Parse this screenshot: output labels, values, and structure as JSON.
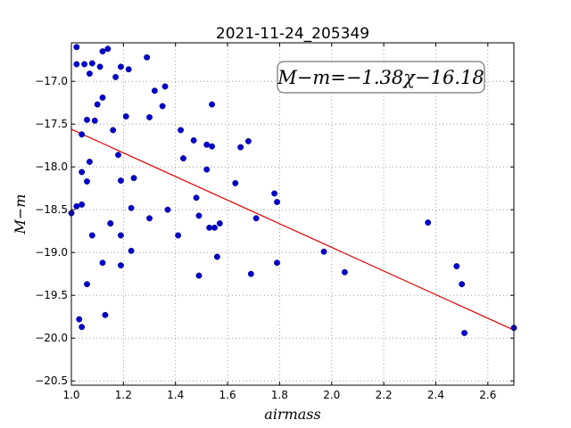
{
  "chart_data": {
    "type": "scatter",
    "title": "2021-11-24_205349",
    "xlabel": "airmass",
    "ylabel": "M−m",
    "xlim": [
      1.0,
      2.7
    ],
    "ylim": [
      -20.55,
      -16.55
    ],
    "xticks": [
      1.0,
      1.2,
      1.4,
      1.6,
      1.8,
      2.0,
      2.2,
      2.4,
      2.6
    ],
    "xtick_labels": [
      "1.0",
      "1.2",
      "1.4",
      "1.6",
      "1.8",
      "2.0",
      "2.2",
      "2.4",
      "2.6"
    ],
    "yticks": [
      -17.0,
      -17.5,
      -18.0,
      -18.5,
      -19.0,
      -19.5,
      -20.0,
      -20.5
    ],
    "ytick_labels": [
      "−17.0",
      "−17.5",
      "−18.0",
      "−18.5",
      "−19.0",
      "−19.5",
      "−20.0",
      "−20.5"
    ],
    "grid": true,
    "annotation": "M−m=−1.38χ−16.18",
    "fit": {
      "slope": -1.38,
      "intercept": -16.18,
      "color": "#e00000"
    },
    "marker_color": "#0000cc",
    "points": [
      [
        1.0,
        -18.54
      ],
      [
        1.02,
        -16.6
      ],
      [
        1.02,
        -16.8
      ],
      [
        1.02,
        -18.46
      ],
      [
        1.03,
        -19.78
      ],
      [
        1.04,
        -19.87
      ],
      [
        1.04,
        -18.44
      ],
      [
        1.04,
        -18.06
      ],
      [
        1.04,
        -17.62
      ],
      [
        1.05,
        -16.8
      ],
      [
        1.06,
        -17.45
      ],
      [
        1.06,
        -18.17
      ],
      [
        1.06,
        -19.37
      ],
      [
        1.07,
        -16.91
      ],
      [
        1.07,
        -17.94
      ],
      [
        1.08,
        -16.79
      ],
      [
        1.08,
        -18.8
      ],
      [
        1.09,
        -17.46
      ],
      [
        1.1,
        -17.27
      ],
      [
        1.11,
        -16.83
      ],
      [
        1.12,
        -17.19
      ],
      [
        1.12,
        -16.65
      ],
      [
        1.12,
        -19.12
      ],
      [
        1.13,
        -19.73
      ],
      [
        1.14,
        -16.62
      ],
      [
        1.15,
        -18.66
      ],
      [
        1.15,
        -18.66
      ],
      [
        1.16,
        -17.57
      ],
      [
        1.17,
        -16.95
      ],
      [
        1.18,
        -17.86
      ],
      [
        1.19,
        -18.16
      ],
      [
        1.19,
        -16.83
      ],
      [
        1.19,
        -18.8
      ],
      [
        1.19,
        -19.15
      ],
      [
        1.21,
        -17.41
      ],
      [
        1.22,
        -16.86
      ],
      [
        1.23,
        -18.48
      ],
      [
        1.23,
        -18.98
      ],
      [
        1.24,
        -18.13
      ],
      [
        1.29,
        -16.72
      ],
      [
        1.3,
        -18.6
      ],
      [
        1.3,
        -17.42
      ],
      [
        1.32,
        -17.11
      ],
      [
        1.35,
        -17.29
      ],
      [
        1.36,
        -17.06
      ],
      [
        1.37,
        -18.5
      ],
      [
        1.41,
        -18.8
      ],
      [
        1.42,
        -17.57
      ],
      [
        1.43,
        -17.9
      ],
      [
        1.47,
        -17.69
      ],
      [
        1.48,
        -18.36
      ],
      [
        1.49,
        -18.57
      ],
      [
        1.49,
        -19.27
      ],
      [
        1.52,
        -17.74
      ],
      [
        1.52,
        -18.03
      ],
      [
        1.53,
        -18.71
      ],
      [
        1.54,
        -17.76
      ],
      [
        1.54,
        -17.27
      ],
      [
        1.55,
        -18.71
      ],
      [
        1.56,
        -19.05
      ],
      [
        1.57,
        -18.66
      ],
      [
        1.63,
        -18.19
      ],
      [
        1.65,
        -17.77
      ],
      [
        1.68,
        -17.7
      ],
      [
        1.69,
        -19.25
      ],
      [
        1.71,
        -18.6
      ],
      [
        1.78,
        -18.31
      ],
      [
        1.79,
        -18.41
      ],
      [
        1.79,
        -19.12
      ],
      [
        1.97,
        -18.99
      ],
      [
        2.05,
        -19.23
      ],
      [
        2.37,
        -18.65
      ],
      [
        2.48,
        -19.16
      ],
      [
        2.5,
        -19.37
      ],
      [
        2.51,
        -19.94
      ],
      [
        2.7,
        -19.88
      ]
    ]
  }
}
